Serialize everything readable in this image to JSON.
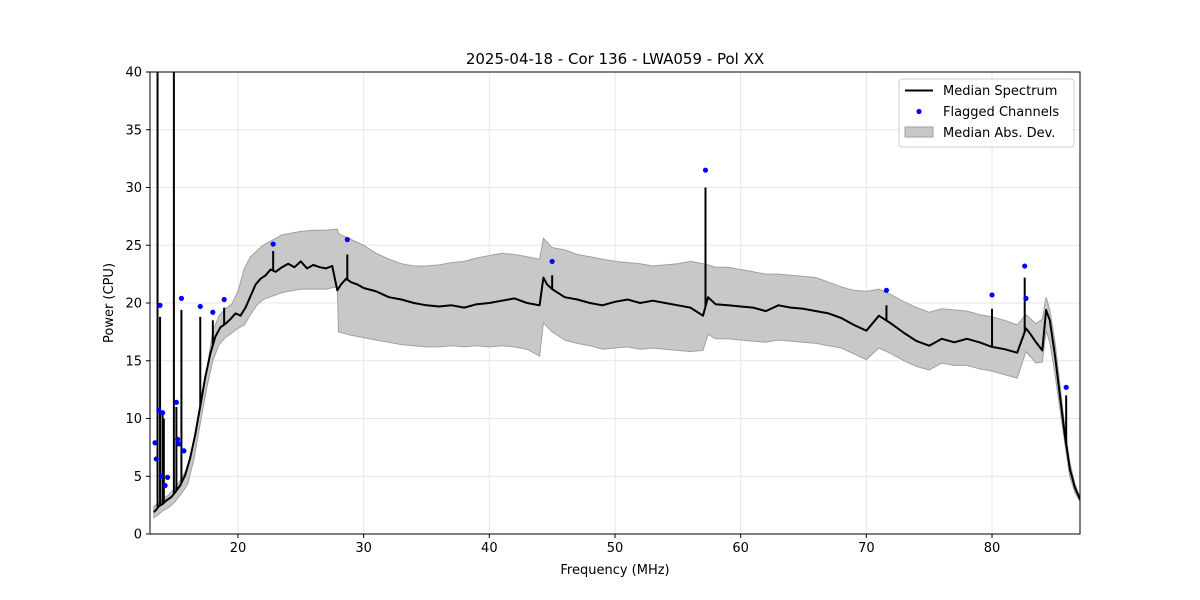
{
  "chart_data": {
    "type": "line",
    "title": "2025-04-18 - Cor 136 - LWA059 - Pol XX",
    "xlabel": "Frequency (MHz)",
    "ylabel": "Power (CPU)",
    "xlim": [
      13,
      87
    ],
    "ylim": [
      0,
      40
    ],
    "xticks": [
      20,
      30,
      40,
      50,
      60,
      70,
      80
    ],
    "yticks": [
      0,
      5,
      10,
      15,
      20,
      25,
      30,
      35,
      40
    ],
    "grid": true,
    "legend_position": "top-right",
    "colors": {
      "median": "#000000",
      "flagged": "#0000ff",
      "mad_fill": "#c8c8c8",
      "mad_edge": "#a0a0a0"
    },
    "legend": [
      {
        "label": "Median Spectrum",
        "kind": "line"
      },
      {
        "label": "Flagged Channels",
        "kind": "marker"
      },
      {
        "label": "Median Abs. Dev.",
        "kind": "patch"
      }
    ],
    "series": [
      {
        "name": "Median Spectrum",
        "x": [
          13.3,
          13.5,
          13.7,
          14.0,
          14.3,
          14.7,
          15.0,
          15.4,
          15.8,
          16.2,
          16.6,
          17.0,
          17.4,
          17.8,
          18.2,
          18.6,
          19.0,
          19.4,
          19.8,
          20.2,
          20.6,
          21.0,
          21.4,
          21.8,
          22.2,
          22.6,
          23.0,
          23.5,
          24.0,
          24.5,
          25.0,
          25.5,
          26.0,
          26.5,
          27.0,
          27.5,
          27.9,
          28.2,
          28.6,
          29.0,
          29.5,
          30.0,
          31.0,
          32.0,
          33.0,
          34.0,
          35.0,
          36.0,
          37.0,
          38.0,
          39.0,
          40.0,
          41.0,
          42.0,
          43.0,
          44.0,
          44.3,
          44.6,
          45.0,
          46.0,
          47.0,
          48.0,
          49.0,
          50.0,
          51.0,
          52.0,
          53.0,
          54.0,
          55.0,
          56.0,
          57.0,
          57.4,
          58.0,
          59.0,
          60.0,
          61.0,
          62.0,
          63.0,
          64.0,
          65.0,
          66.0,
          67.0,
          68.0,
          69.0,
          70.0,
          71.0,
          72.0,
          73.0,
          74.0,
          75.0,
          76.0,
          77.0,
          78.0,
          79.0,
          80.0,
          81.0,
          82.0,
          82.7,
          83.0,
          83.5,
          84.0,
          84.3,
          84.6,
          85.0,
          85.4,
          85.8,
          86.2,
          86.6,
          87.0
        ],
        "y": [
          1.9,
          2.1,
          2.4,
          2.6,
          2.9,
          3.2,
          3.6,
          4.2,
          5.1,
          6.6,
          8.6,
          11.1,
          13.6,
          15.6,
          17.1,
          17.9,
          18.2,
          18.6,
          19.1,
          18.9,
          19.6,
          20.6,
          21.6,
          22.1,
          22.4,
          22.9,
          22.7,
          23.1,
          23.4,
          23.1,
          23.6,
          23.0,
          23.3,
          23.1,
          23.0,
          23.2,
          21.1,
          21.6,
          22.1,
          21.8,
          21.6,
          21.3,
          21.0,
          20.5,
          20.3,
          20.0,
          19.8,
          19.7,
          19.8,
          19.6,
          19.9,
          20.0,
          20.2,
          20.4,
          20.0,
          19.8,
          22.2,
          21.6,
          21.2,
          20.5,
          20.3,
          20.0,
          19.8,
          20.1,
          20.3,
          20.0,
          20.2,
          20.0,
          19.8,
          19.6,
          18.9,
          20.5,
          19.9,
          19.8,
          19.7,
          19.6,
          19.3,
          19.8,
          19.6,
          19.5,
          19.3,
          19.1,
          18.7,
          18.1,
          17.6,
          18.9,
          18.2,
          17.4,
          16.7,
          16.3,
          16.9,
          16.6,
          16.9,
          16.6,
          16.2,
          16.0,
          15.7,
          17.8,
          17.4,
          16.6,
          15.9,
          19.4,
          18.5,
          15.5,
          12.0,
          8.5,
          5.6,
          4.0,
          3.0
        ]
      },
      {
        "name": "Median Abs. Dev.",
        "x": [
          13.3,
          13.7,
          14.0,
          14.5,
          15.0,
          15.5,
          16.0,
          16.5,
          17.0,
          17.5,
          18.0,
          18.5,
          19.0,
          19.5,
          20.0,
          20.5,
          21.0,
          21.5,
          22.0,
          22.5,
          23.0,
          23.5,
          24.0,
          25.0,
          26.0,
          27.0,
          27.9,
          28.0,
          29.0,
          30.0,
          31.0,
          32.0,
          33.0,
          34.0,
          35.0,
          36.0,
          37.0,
          38.0,
          39.0,
          40.0,
          41.0,
          42.0,
          43.0,
          44.0,
          44.3,
          45.0,
          46.0,
          47.0,
          48.0,
          49.0,
          50.0,
          51.0,
          52.0,
          53.0,
          54.0,
          55.0,
          56.0,
          57.0,
          57.4,
          58.0,
          59.0,
          60.0,
          61.0,
          62.0,
          63.0,
          64.0,
          65.0,
          66.0,
          67.0,
          68.0,
          69.0,
          70.0,
          71.0,
          72.0,
          73.0,
          74.0,
          75.0,
          76.0,
          77.0,
          78.0,
          79.0,
          80.0,
          81.0,
          82.0,
          82.7,
          83.5,
          84.0,
          84.3,
          84.6,
          85.0,
          85.4,
          85.8,
          86.2,
          86.6,
          87.0
        ],
        "lower": [
          1.4,
          1.7,
          2.0,
          2.3,
          2.8,
          3.5,
          4.3,
          6.5,
          9.6,
          12.6,
          15.0,
          16.4,
          17.0,
          17.4,
          17.8,
          18.1,
          19.0,
          19.8,
          20.3,
          20.5,
          20.7,
          20.9,
          21.0,
          21.2,
          21.2,
          21.2,
          21.4,
          17.5,
          17.2,
          17.0,
          16.8,
          16.6,
          16.4,
          16.3,
          16.2,
          16.2,
          16.3,
          16.2,
          16.3,
          16.2,
          16.3,
          16.2,
          16.0,
          15.4,
          18.3,
          17.5,
          16.8,
          16.5,
          16.3,
          16.0,
          16.1,
          16.2,
          16.0,
          16.1,
          16.0,
          15.9,
          15.8,
          15.9,
          17.3,
          16.9,
          16.9,
          16.8,
          16.7,
          16.6,
          16.8,
          16.7,
          16.6,
          16.5,
          16.3,
          16.1,
          15.6,
          15.1,
          16.1,
          15.6,
          15.0,
          14.5,
          14.2,
          14.8,
          14.6,
          14.6,
          14.3,
          14.1,
          13.8,
          13.5,
          15.8,
          14.8,
          14.9,
          17.6,
          16.6,
          13.9,
          10.8,
          7.8,
          4.9,
          3.6,
          2.8
        ],
        "upper": [
          2.4,
          2.7,
          3.0,
          3.4,
          4.0,
          4.8,
          5.8,
          7.9,
          10.9,
          14.1,
          17.6,
          18.9,
          19.5,
          19.9,
          21.0,
          23.0,
          24.0,
          24.5,
          25.0,
          25.3,
          25.6,
          25.9,
          26.0,
          26.2,
          26.3,
          26.3,
          26.4,
          26.0,
          25.5,
          25.0,
          24.3,
          23.8,
          23.4,
          23.2,
          23.2,
          23.3,
          23.5,
          23.6,
          23.9,
          24.1,
          24.3,
          24.2,
          24.0,
          23.8,
          25.6,
          24.8,
          24.6,
          24.2,
          24.0,
          23.8,
          23.6,
          23.5,
          23.4,
          23.2,
          23.3,
          23.4,
          23.6,
          23.4,
          23.3,
          23.1,
          23.1,
          22.9,
          22.7,
          22.5,
          22.5,
          22.4,
          22.3,
          22.2,
          21.8,
          21.4,
          21.1,
          21.0,
          21.2,
          20.7,
          20.1,
          19.6,
          19.2,
          19.5,
          19.4,
          19.3,
          19.0,
          18.8,
          18.5,
          18.1,
          19.0,
          18.2,
          18.6,
          20.5,
          19.4,
          16.7,
          13.0,
          9.2,
          6.2,
          4.3,
          3.2
        ]
      },
      {
        "name": "Flagged Channels",
        "x": [
          13.4,
          13.5,
          13.7,
          13.8,
          13.9,
          14.0,
          14.2,
          14.4,
          15.1,
          15.2,
          15.3,
          15.5,
          15.7,
          17.0,
          18.0,
          18.9,
          22.8,
          28.7,
          45.0,
          57.2,
          71.6,
          80.0,
          82.6,
          82.7,
          85.9
        ],
        "y": [
          7.9,
          6.5,
          10.7,
          19.8,
          5.0,
          10.5,
          4.2,
          4.9,
          11.4,
          8.2,
          7.8,
          20.4,
          7.2,
          19.7,
          19.2,
          20.3,
          25.1,
          25.5,
          23.6,
          31.5,
          21.1,
          20.7,
          23.2,
          20.4,
          12.7
        ]
      }
    ],
    "spikes": {
      "x": [
        13.6,
        13.8,
        14.0,
        14.1,
        14.9,
        15.1,
        15.5,
        17.0,
        18.0,
        18.9,
        22.8,
        28.7,
        45.0,
        57.2,
        71.6,
        80.0,
        82.6,
        85.9
      ],
      "y": [
        40,
        18.8,
        10.3,
        10.0,
        40,
        11.0,
        19.4,
        18.8,
        18.5,
        19.6,
        24.5,
        24.2,
        22.4,
        30.0,
        19.8,
        19.5,
        22.2,
        12.0
      ]
    }
  }
}
